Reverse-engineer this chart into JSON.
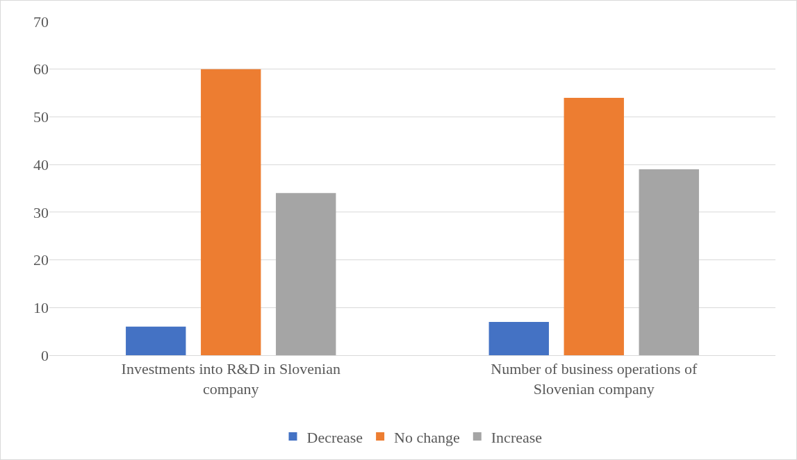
{
  "chart_data": {
    "type": "bar",
    "categories": [
      "Investments into R&D in Slovenian company",
      "Number of business operations of Slovenian company"
    ],
    "series": [
      {
        "name": "Decrease",
        "color": "#4472c4",
        "values": [
          6,
          7
        ]
      },
      {
        "name": "No change",
        "color": "#ed7d31",
        "values": [
          60,
          54
        ]
      },
      {
        "name": "Increase",
        "color": "#a5a5a5",
        "values": [
          34,
          39
        ]
      }
    ],
    "ylim": [
      0,
      70
    ],
    "yticks": [
      0,
      10,
      20,
      30,
      40,
      50,
      60,
      70
    ],
    "grid": "y",
    "legend": "bottom"
  }
}
